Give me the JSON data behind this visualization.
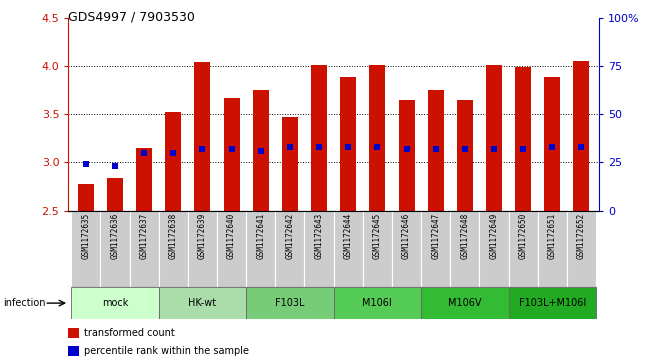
{
  "title": "GDS4997 / 7903530",
  "samples": [
    "GSM1172635",
    "GSM1172636",
    "GSM1172637",
    "GSM1172638",
    "GSM1172639",
    "GSM1172640",
    "GSM1172641",
    "GSM1172642",
    "GSM1172643",
    "GSM1172644",
    "GSM1172645",
    "GSM1172646",
    "GSM1172647",
    "GSM1172648",
    "GSM1172649",
    "GSM1172650",
    "GSM1172651",
    "GSM1172652"
  ],
  "transformed_counts": [
    2.78,
    2.84,
    3.15,
    3.52,
    4.04,
    3.67,
    3.75,
    3.47,
    4.01,
    3.89,
    4.01,
    3.65,
    3.75,
    3.65,
    4.01,
    3.99,
    3.89,
    4.05
  ],
  "percentile_ranks_pct": [
    24,
    23,
    30,
    30,
    32,
    32,
    31,
    33,
    33,
    33,
    33,
    32,
    32,
    32,
    32,
    32,
    33,
    33
  ],
  "groups": [
    {
      "label": "mock",
      "indices": [
        0,
        1,
        2
      ],
      "color": "#ccffcc"
    },
    {
      "label": "HK-wt",
      "indices": [
        3,
        4,
        5
      ],
      "color": "#aaddaa"
    },
    {
      "label": "F103L",
      "indices": [
        6,
        7,
        8
      ],
      "color": "#77cc77"
    },
    {
      "label": "M106I",
      "indices": [
        9,
        10,
        11
      ],
      "color": "#55cc55"
    },
    {
      "label": "M106V",
      "indices": [
        12,
        13,
        14
      ],
      "color": "#33bb33"
    },
    {
      "label": "F103L+M106I",
      "indices": [
        15,
        16,
        17
      ],
      "color": "#22aa22"
    }
  ],
  "ylim_left": [
    2.5,
    4.5
  ],
  "ylim_right": [
    0,
    100
  ],
  "yticks_left": [
    2.5,
    3.0,
    3.5,
    4.0,
    4.5
  ],
  "yticks_right": [
    0,
    25,
    50,
    75,
    100
  ],
  "ytick_right_labels": [
    "0",
    "25",
    "50",
    "75",
    "100%"
  ],
  "bar_color": "#cc1100",
  "percentile_color": "#0000cc",
  "bar_width": 0.55,
  "legend_items": [
    "transformed count",
    "percentile rank within the sample"
  ],
  "legend_colors": [
    "#cc1100",
    "#0000cc"
  ]
}
